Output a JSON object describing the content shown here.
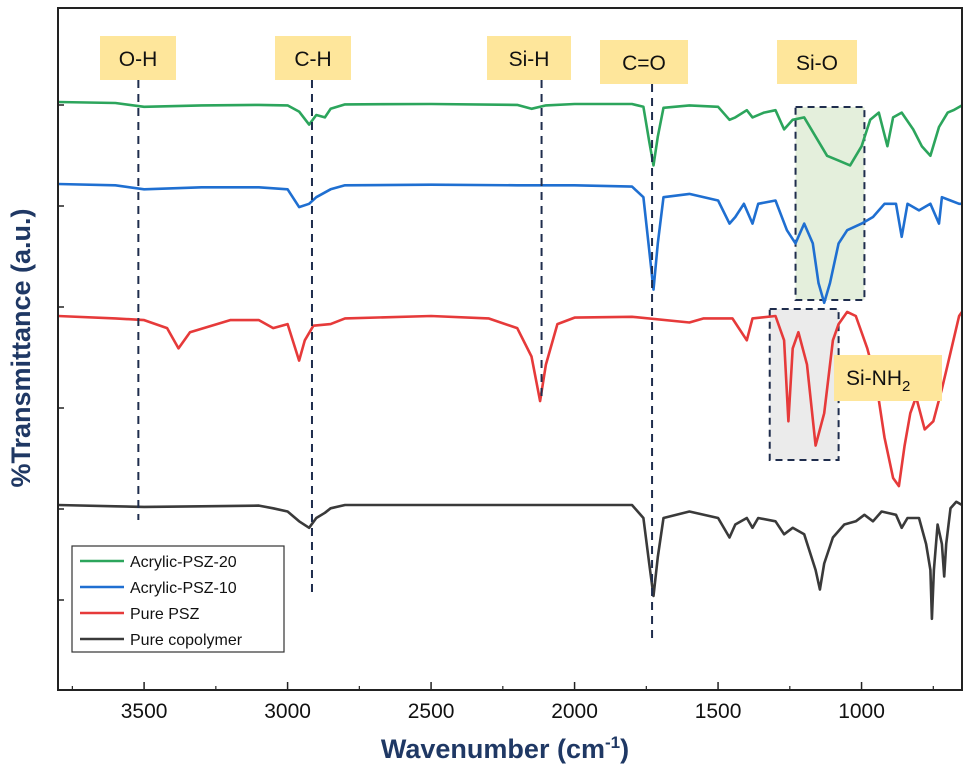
{
  "chart_data": {
    "type": "line",
    "title": "",
    "xlabel": "Wavenumber (cm",
    "xlabel_superscript": "-1",
    "xlabel_suffix": ")",
    "ylabel": "%Transmittance (a.u.)",
    "x_reversed": true,
    "xlim": [
      3800,
      650
    ],
    "x_ticks": [
      3500,
      3000,
      2500,
      2000,
      1500,
      1000
    ],
    "y_ticks_labeled": false,
    "legend_position": "bottom-left",
    "series": [
      {
        "name": "Acrylic-PSZ-20",
        "color": "#2ca55c",
        "offset": 4,
        "points": [
          [
            3800,
            0.02
          ],
          [
            3600,
            0.0
          ],
          [
            3500,
            -0.08
          ],
          [
            3300,
            -0.05
          ],
          [
            3100,
            -0.04
          ],
          [
            3000,
            -0.05
          ],
          [
            2960,
            -0.18
          ],
          [
            2925,
            -0.45
          ],
          [
            2900,
            -0.25
          ],
          [
            2870,
            -0.3
          ],
          [
            2850,
            -0.12
          ],
          [
            2800,
            -0.03
          ],
          [
            2500,
            -0.02
          ],
          [
            2200,
            -0.04
          ],
          [
            2150,
            -0.12
          ],
          [
            2100,
            -0.05
          ],
          [
            2000,
            -0.02
          ],
          [
            1800,
            -0.02
          ],
          [
            1760,
            -0.08
          ],
          [
            1740,
            -0.8
          ],
          [
            1725,
            -1.3
          ],
          [
            1710,
            -0.7
          ],
          [
            1690,
            -0.1
          ],
          [
            1600,
            -0.05
          ],
          [
            1500,
            -0.08
          ],
          [
            1460,
            -0.35
          ],
          [
            1440,
            -0.3
          ],
          [
            1400,
            -0.15
          ],
          [
            1380,
            -0.3
          ],
          [
            1340,
            -0.2
          ],
          [
            1300,
            -0.15
          ],
          [
            1270,
            -0.55
          ],
          [
            1240,
            -0.35
          ],
          [
            1200,
            -0.3
          ],
          [
            1160,
            -0.7
          ],
          [
            1120,
            -1.1
          ],
          [
            1080,
            -1.2
          ],
          [
            1040,
            -1.3
          ],
          [
            1000,
            -0.9
          ],
          [
            970,
            -0.35
          ],
          [
            940,
            -0.2
          ],
          [
            910,
            -0.9
          ],
          [
            890,
            -0.3
          ],
          [
            860,
            -0.2
          ],
          [
            820,
            -0.55
          ],
          [
            790,
            -0.9
          ],
          [
            760,
            -1.1
          ],
          [
            730,
            -0.5
          ],
          [
            700,
            -0.2
          ],
          [
            680,
            -0.15
          ],
          [
            650,
            -0.05
          ]
        ]
      },
      {
        "name": "Acrylic-PSZ-10",
        "color": "#1f6fd1",
        "offset": 3,
        "points": [
          [
            3800,
            0.0
          ],
          [
            3600,
            -0.02
          ],
          [
            3500,
            -0.08
          ],
          [
            3300,
            -0.05
          ],
          [
            3100,
            -0.05
          ],
          [
            3000,
            -0.08
          ],
          [
            2960,
            -0.35
          ],
          [
            2925,
            -0.3
          ],
          [
            2900,
            -0.2
          ],
          [
            2850,
            -0.08
          ],
          [
            2800,
            -0.02
          ],
          [
            2500,
            -0.01
          ],
          [
            2200,
            -0.02
          ],
          [
            2100,
            -0.02
          ],
          [
            2000,
            -0.02
          ],
          [
            1800,
            -0.04
          ],
          [
            1760,
            -0.2
          ],
          [
            1740,
            -1.0
          ],
          [
            1725,
            -1.6
          ],
          [
            1710,
            -0.9
          ],
          [
            1690,
            -0.2
          ],
          [
            1600,
            -0.15
          ],
          [
            1500,
            -0.25
          ],
          [
            1460,
            -0.6
          ],
          [
            1440,
            -0.5
          ],
          [
            1410,
            -0.3
          ],
          [
            1380,
            -0.6
          ],
          [
            1360,
            -0.3
          ],
          [
            1300,
            -0.25
          ],
          [
            1260,
            -0.7
          ],
          [
            1230,
            -0.9
          ],
          [
            1200,
            -0.6
          ],
          [
            1170,
            -0.9
          ],
          [
            1150,
            -1.5
          ],
          [
            1130,
            -1.8
          ],
          [
            1110,
            -1.5
          ],
          [
            1080,
            -0.9
          ],
          [
            1050,
            -0.7
          ],
          [
            1000,
            -0.6
          ],
          [
            960,
            -0.5
          ],
          [
            920,
            -0.3
          ],
          [
            880,
            -0.3
          ],
          [
            860,
            -0.8
          ],
          [
            840,
            -0.3
          ],
          [
            800,
            -0.4
          ],
          [
            760,
            -0.3
          ],
          [
            730,
            -0.6
          ],
          [
            720,
            -0.2
          ],
          [
            690,
            -0.25
          ],
          [
            660,
            -0.3
          ],
          [
            650,
            -0.3
          ]
        ]
      },
      {
        "name": "Pure PSZ",
        "color": "#e63a3a",
        "offset": 2,
        "points": [
          [
            3800,
            0.0
          ],
          [
            3600,
            -0.03
          ],
          [
            3500,
            -0.05
          ],
          [
            3420,
            -0.15
          ],
          [
            3380,
            -0.4
          ],
          [
            3340,
            -0.2
          ],
          [
            3200,
            -0.05
          ],
          [
            3100,
            -0.05
          ],
          [
            3050,
            -0.15
          ],
          [
            3000,
            -0.1
          ],
          [
            2960,
            -0.55
          ],
          [
            2940,
            -0.3
          ],
          [
            2910,
            -0.12
          ],
          [
            2850,
            -0.1
          ],
          [
            2800,
            -0.03
          ],
          [
            2500,
            0.0
          ],
          [
            2300,
            -0.03
          ],
          [
            2200,
            -0.15
          ],
          [
            2150,
            -0.5
          ],
          [
            2120,
            -1.05
          ],
          [
            2100,
            -0.6
          ],
          [
            2060,
            -0.1
          ],
          [
            2000,
            -0.02
          ],
          [
            1800,
            -0.01
          ],
          [
            1600,
            -0.08
          ],
          [
            1550,
            -0.03
          ],
          [
            1450,
            -0.03
          ],
          [
            1400,
            -0.3
          ],
          [
            1380,
            -0.03
          ],
          [
            1300,
            0.0
          ],
          [
            1270,
            -0.3
          ],
          [
            1255,
            -1.3
          ],
          [
            1240,
            -0.4
          ],
          [
            1220,
            -0.2
          ],
          [
            1190,
            -0.6
          ],
          [
            1160,
            -1.6
          ],
          [
            1130,
            -1.2
          ],
          [
            1100,
            -0.3
          ],
          [
            1080,
            -0.1
          ],
          [
            1050,
            0.05
          ],
          [
            1020,
            0.0
          ],
          [
            980,
            -0.4
          ],
          [
            950,
            -0.8
          ],
          [
            920,
            -1.5
          ],
          [
            890,
            -2.0
          ],
          [
            870,
            -2.1
          ],
          [
            850,
            -1.6
          ],
          [
            830,
            -1.2
          ],
          [
            810,
            -1.0
          ],
          [
            780,
            -1.4
          ],
          [
            750,
            -1.3
          ],
          [
            720,
            -0.9
          ],
          [
            700,
            -0.6
          ],
          [
            680,
            -0.3
          ],
          [
            660,
            0.0
          ],
          [
            650,
            0.05
          ]
        ]
      },
      {
        "name": "Pure copolymer",
        "color": "#3a3a3a",
        "offset": 1,
        "points": [
          [
            3800,
            0.0
          ],
          [
            3600,
            -0.02
          ],
          [
            3500,
            -0.03
          ],
          [
            3300,
            -0.02
          ],
          [
            3100,
            -0.01
          ],
          [
            3050,
            -0.05
          ],
          [
            3000,
            -0.1
          ],
          [
            2960,
            -0.25
          ],
          [
            2925,
            -0.35
          ],
          [
            2900,
            -0.2
          ],
          [
            2870,
            -0.12
          ],
          [
            2850,
            -0.05
          ],
          [
            2800,
            0.0
          ],
          [
            2500,
            0.0
          ],
          [
            2000,
            0.0
          ],
          [
            1800,
            0.0
          ],
          [
            1760,
            -0.2
          ],
          [
            1740,
            -0.9
          ],
          [
            1725,
            -1.4
          ],
          [
            1710,
            -0.8
          ],
          [
            1690,
            -0.2
          ],
          [
            1600,
            -0.1
          ],
          [
            1500,
            -0.2
          ],
          [
            1460,
            -0.5
          ],
          [
            1440,
            -0.3
          ],
          [
            1400,
            -0.2
          ],
          [
            1380,
            -0.35
          ],
          [
            1360,
            -0.2
          ],
          [
            1300,
            -0.25
          ],
          [
            1270,
            -0.45
          ],
          [
            1240,
            -0.35
          ],
          [
            1200,
            -0.45
          ],
          [
            1160,
            -1.0
          ],
          [
            1145,
            -1.3
          ],
          [
            1130,
            -0.9
          ],
          [
            1100,
            -0.5
          ],
          [
            1060,
            -0.3
          ],
          [
            1020,
            -0.25
          ],
          [
            990,
            -0.15
          ],
          [
            960,
            -0.25
          ],
          [
            930,
            -0.1
          ],
          [
            880,
            -0.15
          ],
          [
            860,
            -0.35
          ],
          [
            840,
            -0.2
          ],
          [
            800,
            -0.2
          ],
          [
            775,
            -0.6
          ],
          [
            760,
            -1.0
          ],
          [
            755,
            -1.75
          ],
          [
            748,
            -1.0
          ],
          [
            735,
            -0.3
          ],
          [
            720,
            -0.6
          ],
          [
            712,
            -1.1
          ],
          [
            705,
            -0.6
          ],
          [
            690,
            -0.05
          ],
          [
            670,
            0.05
          ],
          [
            650,
            0.0
          ]
        ]
      }
    ],
    "band_markers": [
      {
        "label": "O-H",
        "x": 3520
      },
      {
        "label": "C-H",
        "x": 2915
      },
      {
        "label": "Si-H",
        "x": 2115
      },
      {
        "label": "C=O",
        "x": 1730
      },
      {
        "label": "Si-O",
        "x": 1115
      },
      {
        "label": "Si-NH",
        "subscript": "2",
        "x": 870
      }
    ],
    "highlight_regions": [
      {
        "name": "si-o-region",
        "x_range": [
          1230,
          990
        ],
        "fill": "#dfecd6"
      },
      {
        "name": "si-nh2-region",
        "x_range": [
          1320,
          1080
        ],
        "fill": "#e8e8e8"
      }
    ],
    "label_box_color": "#fee69b"
  }
}
